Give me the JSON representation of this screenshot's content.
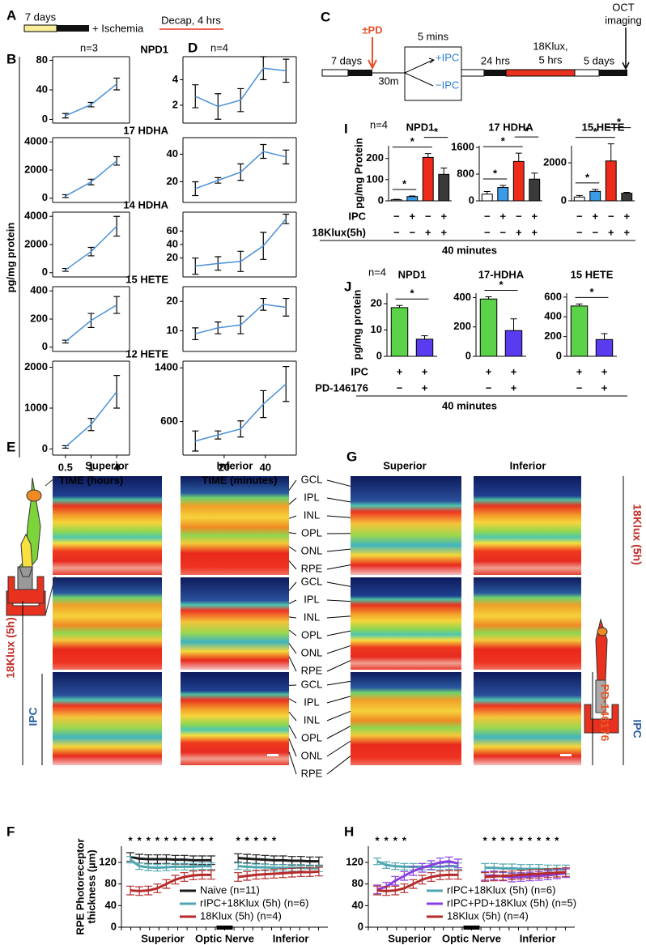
{
  "panel_labels": [
    "A",
    "B",
    "C",
    "D",
    "E",
    "F",
    "G",
    "H",
    "I",
    "J"
  ],
  "panel_a": {
    "days": "7 days",
    "ischemia": "+ Ischemia",
    "decap": "Decap, 4 hrs"
  },
  "panel_b_ylabel": "pg/mg protein",
  "panel_c": {
    "pd": "±PD",
    "days7": "7 days",
    "m30": "30m",
    "mins5": "5 mins",
    "plus_ipc": "+IPC",
    "minus_ipc": "−IPC",
    "hrs24": "24 hrs",
    "klux": "18Klux,",
    "hrs5": "5 hrs",
    "days5": "5 days",
    "oct": "OCT",
    "imaging": "imaging"
  },
  "panel_i_conditions": {
    "labels": [
      "IPC",
      "18Klux(5h)"
    ],
    "rows": [
      [
        "−",
        "+",
        "−",
        "+"
      ],
      [
        "−",
        "−",
        "+",
        "+"
      ]
    ],
    "footer": "40 minutes"
  },
  "panel_j_conditions": {
    "labels": [
      "IPC",
      "PD-146176"
    ],
    "rows": [
      [
        "+",
        "+"
      ],
      [
        "−",
        "+"
      ]
    ],
    "footer": "40 minutes"
  },
  "oct_headers": [
    "Superior",
    "Inferior"
  ],
  "oct_layers": [
    "GCL",
    "IPL",
    "INL",
    "OPL",
    "ONL",
    "RPE"
  ],
  "side_labels": {
    "left": [
      "18Klux (5h)",
      "IPC"
    ],
    "right": [
      "18Klux (5h)",
      "PD-146176",
      "IPC"
    ]
  },
  "chart_data": [
    {
      "type": "line",
      "title": "NPD1",
      "annotation": "n=3",
      "frame": true,
      "ylim": [
        -5,
        85
      ],
      "yticks": [
        0,
        40,
        80
      ],
      "error_color": "#000000",
      "line_width": 1.5,
      "series": [
        {
          "color": "#4a90d9",
          "values": [
            5,
            20,
            48
          ],
          "errors": [
            3,
            3,
            8
          ]
        }
      ]
    },
    {
      "type": "line",
      "title": "17 HDHA",
      "frame": true,
      "ylim": [
        -300,
        4300
      ],
      "yticks": [
        0,
        2000,
        4000
      ],
      "error_color": "#000000",
      "line_width": 1.5,
      "series": [
        {
          "color": "#4a90d9",
          "values": [
            150,
            1150,
            2650
          ],
          "errors": [
            100,
            200,
            300
          ]
        }
      ]
    },
    {
      "type": "line",
      "title": "14 HDHA",
      "frame": true,
      "ylim": [
        -300,
        4300
      ],
      "yticks": [
        0,
        2000,
        4000
      ],
      "error_color": "#000000",
      "line_width": 1.5,
      "series": [
        {
          "color": "#4a90d9",
          "values": [
            200,
            1500,
            3300
          ],
          "errors": [
            100,
            300,
            700
          ]
        }
      ]
    },
    {
      "type": "line",
      "title": "15 HETE",
      "frame": true,
      "ylim": [
        -30,
        430
      ],
      "yticks": [
        0,
        200,
        400
      ],
      "error_color": "#000000",
      "line_width": 1.5,
      "series": [
        {
          "color": "#4a90d9",
          "values": [
            40,
            190,
            300
          ],
          "errors": [
            10,
            50,
            60
          ]
        }
      ]
    },
    {
      "type": "line",
      "title": "12 HETE",
      "frame": true,
      "categories": [
        "0.5",
        "1",
        "4"
      ],
      "xlabel": "TIME (hours)",
      "ylim": [
        -150,
        2150
      ],
      "yticks": [
        0,
        1000,
        2000
      ],
      "error_color": "#000000",
      "line_width": 1.5,
      "series": [
        {
          "color": "#4a90d9",
          "values": [
            50,
            600,
            1400
          ],
          "errors": [
            30,
            150,
            400
          ]
        }
      ]
    },
    {
      "type": "line",
      "annotation": "n=4",
      "frame": true,
      "x": [
        6,
        17,
        28,
        39,
        50
      ],
      "xlim": [
        0,
        55
      ],
      "ylim": [
        0.6,
        5.8
      ],
      "yticks": [
        2,
        4
      ],
      "error_color": "#000000",
      "line_width": 1.5,
      "series": [
        {
          "color": "#4a90d9",
          "values": [
            2.7,
            1.9,
            2.4,
            4.9,
            4.7
          ],
          "errors": [
            0.9,
            1,
            0.9,
            0.9,
            0.9
          ]
        }
      ]
    },
    {
      "type": "line",
      "frame": true,
      "x": [
        6,
        17,
        28,
        39,
        50
      ],
      "xlim": [
        0,
        55
      ],
      "ylim": [
        5,
        52
      ],
      "yticks": [
        20,
        40
      ],
      "error_color": "#000000",
      "line_width": 1.5,
      "series": [
        {
          "color": "#4a90d9",
          "values": [
            15,
            21,
            27,
            42,
            38
          ],
          "errors": [
            5,
            2,
            6,
            5,
            5
          ]
        }
      ]
    },
    {
      "type": "line",
      "frame": true,
      "x": [
        6,
        17,
        28,
        39,
        50
      ],
      "xlim": [
        0,
        55
      ],
      "ylim": [
        -8,
        88
      ],
      "yticks": [
        20,
        40,
        60
      ],
      "error_color": "#000000",
      "line_width": 1.5,
      "series": [
        {
          "color": "#4a90d9",
          "values": [
            8,
            12,
            15,
            38,
            78
          ],
          "errors": [
            12,
            10,
            15,
            20,
            7
          ]
        }
      ]
    },
    {
      "type": "line",
      "frame": true,
      "x": [
        6,
        17,
        28,
        39,
        50
      ],
      "xlim": [
        0,
        55
      ],
      "ylim": [
        3,
        25
      ],
      "yticks": [
        10,
        20
      ],
      "error_color": "#000000",
      "line_width": 1.5,
      "series": [
        {
          "color": "#4a90d9",
          "values": [
            9,
            11,
            12,
            19,
            18
          ],
          "errors": [
            2,
            2,
            3,
            2,
            3
          ]
        }
      ]
    },
    {
      "type": "line",
      "frame": true,
      "x": [
        6,
        17,
        28,
        39,
        50
      ],
      "xlim": [
        0,
        55
      ],
      "xticks": [
        20,
        40
      ],
      "xlabel": "TIME (minutes)",
      "ylim": [
        100,
        1500
      ],
      "yticks": [
        600,
        1400
      ],
      "error_color": "#000000",
      "line_width": 1.5,
      "series": [
        {
          "color": "#4a90d9",
          "values": [
            310,
            400,
            490,
            860,
            1160
          ],
          "errors": [
            150,
            60,
            120,
            200,
            260
          ]
        }
      ]
    },
    {
      "type": "bar",
      "title": "NPD1",
      "annotation": "n=4",
      "ylabel": "pg/mg Protein",
      "ylim": [
        0,
        260
      ],
      "yticks": [
        0,
        100,
        200
      ],
      "colors": [
        "#ffffff",
        "#3b9be6",
        "#ee2a1b",
        "#3a3a3a"
      ],
      "values": [
        5,
        20,
        205,
        125
      ],
      "errors": [
        2,
        3,
        18,
        30
      ],
      "significance": [
        {
          "pair": [
            0,
            1
          ],
          "label": "*"
        },
        {
          "pair": [
            0,
            2
          ],
          "label": "*"
        },
        {
          "pair": [
            2,
            3
          ],
          "label": "*"
        }
      ]
    },
    {
      "type": "bar",
      "title": "17 HDHA",
      "ylim": [
        0,
        1650
      ],
      "yticks": [
        0,
        800,
        1600
      ],
      "colors": [
        "#ffffff",
        "#3b9be6",
        "#ee2a1b",
        "#3a3a3a"
      ],
      "values": [
        200,
        400,
        1180,
        650
      ],
      "errors": [
        80,
        60,
        250,
        180
      ],
      "significance": [
        {
          "pair": [
            0,
            1
          ],
          "label": "*"
        },
        {
          "pair": [
            0,
            2
          ],
          "label": "*"
        },
        {
          "pair": [
            2,
            3
          ],
          "label": "*"
        }
      ]
    },
    {
      "type": "bar",
      "title": "15 HETE",
      "ylim": [
        0,
        2900
      ],
      "yticks": [
        0,
        2000
      ],
      "colors": [
        "#ffffff",
        "#3b9be6",
        "#ee2a1b",
        "#3a3a3a"
      ],
      "values": [
        200,
        500,
        2100,
        400
      ],
      "errors": [
        80,
        100,
        900,
        50
      ],
      "significance": [
        {
          "pair": [
            0,
            1
          ],
          "label": "*"
        },
        {
          "pair": [
            0,
            2
          ],
          "label": "*"
        },
        {
          "pair": [
            2,
            3
          ],
          "label": "*"
        }
      ]
    },
    {
      "type": "bar",
      "title": "NPD1",
      "annotation": "n=4",
      "ylabel": "pg/mg protein",
      "ylim": [
        0,
        24
      ],
      "yticks": [
        0,
        10,
        20
      ],
      "colors": [
        "#5cd14a",
        "#5a3bf0"
      ],
      "values": [
        18.5,
        6.5
      ],
      "errors": [
        0.8,
        1.3
      ],
      "significance": [
        {
          "pair": [
            0,
            1
          ],
          "label": "*"
        }
      ]
    },
    {
      "type": "bar",
      "title": "17-HDHA",
      "ylim": [
        0,
        430
      ],
      "yticks": [
        0,
        200,
        400
      ],
      "colors": [
        "#5cd14a",
        "#5a3bf0"
      ],
      "values": [
        390,
        175
      ],
      "errors": [
        15,
        80
      ],
      "significance": [
        {
          "pair": [
            0,
            1
          ],
          "label": "*"
        }
      ]
    },
    {
      "type": "bar",
      "title": "15 HETE",
      "ylim": [
        0,
        640
      ],
      "yticks": [
        0,
        200,
        400,
        600
      ],
      "colors": [
        "#5cd14a",
        "#5a3bf0"
      ],
      "values": [
        510,
        170
      ],
      "errors": [
        20,
        60
      ],
      "significance": [
        {
          "pair": [
            0,
            1
          ],
          "label": "*"
        }
      ]
    },
    {
      "type": "line",
      "ylabel": [
        "RPE Photoreceptor",
        "thickness (µm)"
      ],
      "x_labels": [
        "Superior",
        "Optic Nerve",
        "Inferior"
      ],
      "legend": "lower right",
      "star": "*",
      "stars_x": [
        1,
        2,
        3,
        4,
        5,
        6,
        7,
        8,
        9,
        10,
        13,
        14,
        15,
        16,
        17
      ],
      "x": [
        1,
        2,
        3,
        4,
        5,
        6,
        7,
        8,
        9,
        10,
        11.5,
        13,
        14,
        15,
        16,
        17,
        18,
        19,
        20,
        21,
        22
      ],
      "xlim": [
        0,
        23
      ],
      "ylim": [
        0,
        150
      ],
      "yticks": [
        0,
        40,
        80,
        120
      ],
      "line_width": 3,
      "series": [
        {
          "name": "Naive (n=11)",
          "color": "#1a1a1a",
          "values": [
            130,
            127,
            126,
            126,
            126,
            125,
            125,
            124,
            124,
            124,
            null,
            128,
            127,
            126,
            125,
            124,
            124,
            123,
            123,
            122,
            122
          ],
          "errors": [
            8,
            8,
            8,
            8,
            8,
            8,
            8,
            8,
            8,
            8,
            null,
            8,
            8,
            8,
            8,
            8,
            8,
            8,
            8,
            8,
            8
          ]
        },
        {
          "name": "rIPC+18Klux (5h) (n=6)",
          "color": "#4fa6b0",
          "values": [
            125,
            113,
            111,
            110,
            111,
            112,
            112,
            112,
            113,
            113,
            null,
            113,
            112,
            111,
            111,
            110,
            110,
            110,
            110,
            109,
            109
          ],
          "errors": [
            6,
            6,
            6,
            6,
            6,
            6,
            6,
            6,
            6,
            6,
            null,
            6,
            6,
            6,
            6,
            6,
            6,
            6,
            6,
            6,
            6
          ]
        },
        {
          "name": "18Klux (5h) (n=4)",
          "color": "#b52a2a",
          "values": [
            68,
            67,
            68,
            72,
            80,
            88,
            93,
            96,
            97,
            97,
            null,
            93,
            95,
            97,
            98,
            99,
            100,
            101,
            102,
            102,
            103
          ],
          "errors": [
            8,
            8,
            8,
            8,
            8,
            8,
            8,
            8,
            8,
            8,
            null,
            8,
            8,
            8,
            8,
            8,
            8,
            8,
            8,
            8,
            8
          ]
        }
      ]
    },
    {
      "type": "line",
      "x_labels": [
        "Superior",
        "Optic Nerve",
        "Inferior"
      ],
      "legend": "lower right",
      "star": "*",
      "stars_x": [
        1,
        2,
        3,
        4,
        13,
        14,
        15,
        16,
        17,
        18,
        19,
        20,
        21
      ],
      "x": [
        1,
        2,
        3,
        4,
        5,
        6,
        7,
        8,
        9,
        10,
        11.5,
        13,
        14,
        15,
        16,
        17,
        18,
        19,
        20,
        21,
        22
      ],
      "xlim": [
        0,
        23
      ],
      "ylim": [
        0,
        150
      ],
      "yticks": [
        0,
        40,
        80,
        120
      ],
      "line_width": 3,
      "series": [
        {
          "name": "rIPC+18Klux (5h) (n=6)",
          "color": "#4fa6b0",
          "values": [
            122,
            115,
            113,
            112,
            112,
            112,
            112,
            112,
            113,
            113,
            null,
            110,
            110,
            109,
            109,
            108,
            108,
            108,
            107,
            107,
            107
          ],
          "errors": [
            6,
            6,
            6,
            6,
            6,
            6,
            6,
            6,
            6,
            6,
            null,
            8,
            8,
            8,
            8,
            8,
            8,
            8,
            8,
            8,
            8
          ]
        },
        {
          "name": "rIPC+PD+18Klux (5h) (n=5)",
          "color": "#8a3fe0",
          "values": [
            70,
            75,
            86,
            95,
            104,
            110,
            115,
            120,
            122,
            118,
            null,
            95,
            96,
            94,
            92,
            93,
            94,
            95,
            96,
            98,
            100
          ],
          "errors": [
            8,
            8,
            8,
            8,
            8,
            8,
            8,
            8,
            8,
            8,
            null,
            8,
            8,
            8,
            8,
            8,
            8,
            8,
            8,
            8,
            8
          ]
        },
        {
          "name": "18Klux (5h) (n=4)",
          "color": "#b52a2a",
          "values": [
            68,
            67,
            68,
            72,
            80,
            88,
            93,
            96,
            97,
            97,
            null,
            93,
            94,
            95,
            96,
            97,
            98,
            99,
            100,
            101,
            102
          ],
          "errors": [
            8,
            8,
            8,
            8,
            8,
            8,
            8,
            8,
            8,
            8,
            null,
            8,
            8,
            8,
            8,
            8,
            8,
            8,
            8,
            8,
            8
          ]
        }
      ]
    }
  ]
}
